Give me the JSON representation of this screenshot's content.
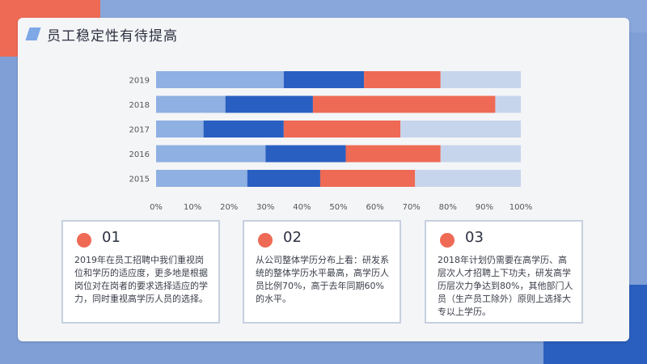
{
  "title": "员工稳定性有待提高",
  "colors": {
    "segment_1": "#8eb0e2",
    "segment_2": "#2a5fc2",
    "segment_3": "#ee6a55",
    "segment_4": "#c7d5ec",
    "dot": "#ee6a55"
  },
  "chart_data": {
    "type": "bar",
    "orientation": "horizontal",
    "stacked": true,
    "categories": [
      "2019",
      "2018",
      "2017",
      "2016",
      "2015"
    ],
    "series": [
      {
        "values": [
          35,
          19,
          13,
          30,
          25
        ]
      },
      {
        "values": [
          22,
          24,
          22,
          22,
          20
        ]
      },
      {
        "values": [
          21,
          50,
          32,
          26,
          26
        ]
      },
      {
        "values": [
          22,
          7,
          33,
          22,
          29
        ]
      }
    ],
    "x_ticks": [
      "0%",
      "10%",
      "20%",
      "30%",
      "40%",
      "50%",
      "60%",
      "70%",
      "80%",
      "90%",
      "100%"
    ],
    "xlim": [
      0,
      100
    ],
    "grid": false
  },
  "boxes": [
    {
      "number": "01",
      "text": "2019年在员工招聘中我们重视岗位和学历的适应度，更多地是根据岗位对在岗者的要求选择适应的学力，同时重视高学历人员的选择。"
    },
    {
      "number": "02",
      "text": "从公司整体学历分布上看：研发系统的整体学历水平最高，高学历人员比例70%，高于去年同期60%的水平。"
    },
    {
      "number": "03",
      "text": "2018年计划仍需要在高学历、高层次人才招聘上下功夫，研发高学历层次力争达到80%，其他部门人员（生产员工除外）原则上选择大专以上学历。"
    }
  ]
}
